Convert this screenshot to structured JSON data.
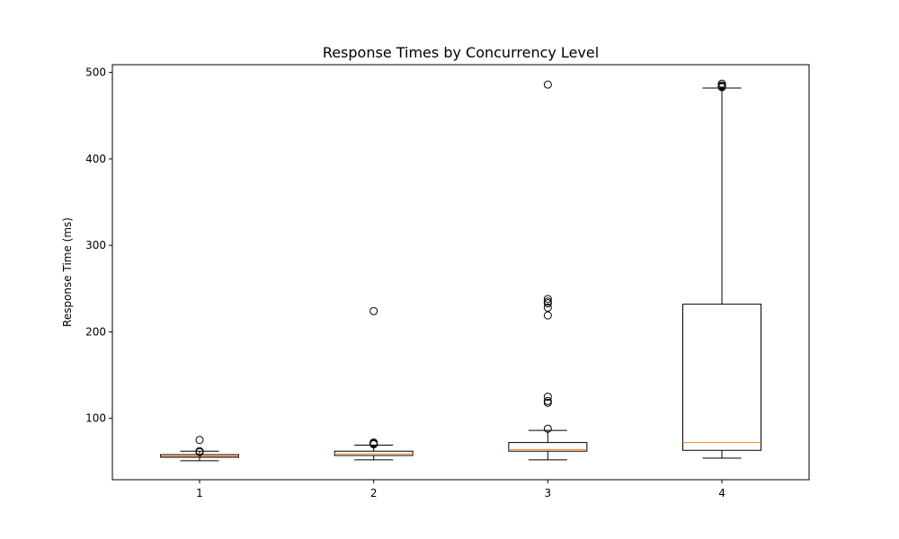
{
  "chart_data": {
    "type": "box",
    "title": "Response Times by Concurrency Level",
    "xlabel": "",
    "ylabel": "Response Time (ms)",
    "ylim": [
      29,
      509
    ],
    "categories": [
      "1",
      "2",
      "3",
      "4"
    ],
    "yticks": [
      100,
      200,
      300,
      400,
      500
    ],
    "grid": false,
    "series": [
      {
        "category": "1",
        "whisker_low": 51,
        "q1": 55,
        "median": 56,
        "q3": 58,
        "whisker_high": 62,
        "outliers": [
          75,
          62,
          61
        ]
      },
      {
        "category": "2",
        "whisker_low": 52,
        "q1": 57,
        "median": 59,
        "q3": 62,
        "whisker_high": 69,
        "outliers": [
          224,
          72,
          71,
          70
        ]
      },
      {
        "category": "3",
        "whisker_low": 52,
        "q1": 62,
        "median": 64,
        "q3": 72,
        "whisker_high": 86,
        "outliers": [
          486,
          238,
          235,
          233,
          228,
          219,
          125,
          120,
          118,
          88
        ]
      },
      {
        "category": "4",
        "whisker_low": 54,
        "q1": 63,
        "median": 72,
        "q3": 232,
        "whisker_high": 482,
        "outliers": [
          487,
          485,
          484,
          483
        ]
      }
    ],
    "colors": {
      "box": "#000000",
      "median": "#ff7f0e",
      "outlier_stroke": "#000000",
      "outlier_fill": "none"
    }
  }
}
